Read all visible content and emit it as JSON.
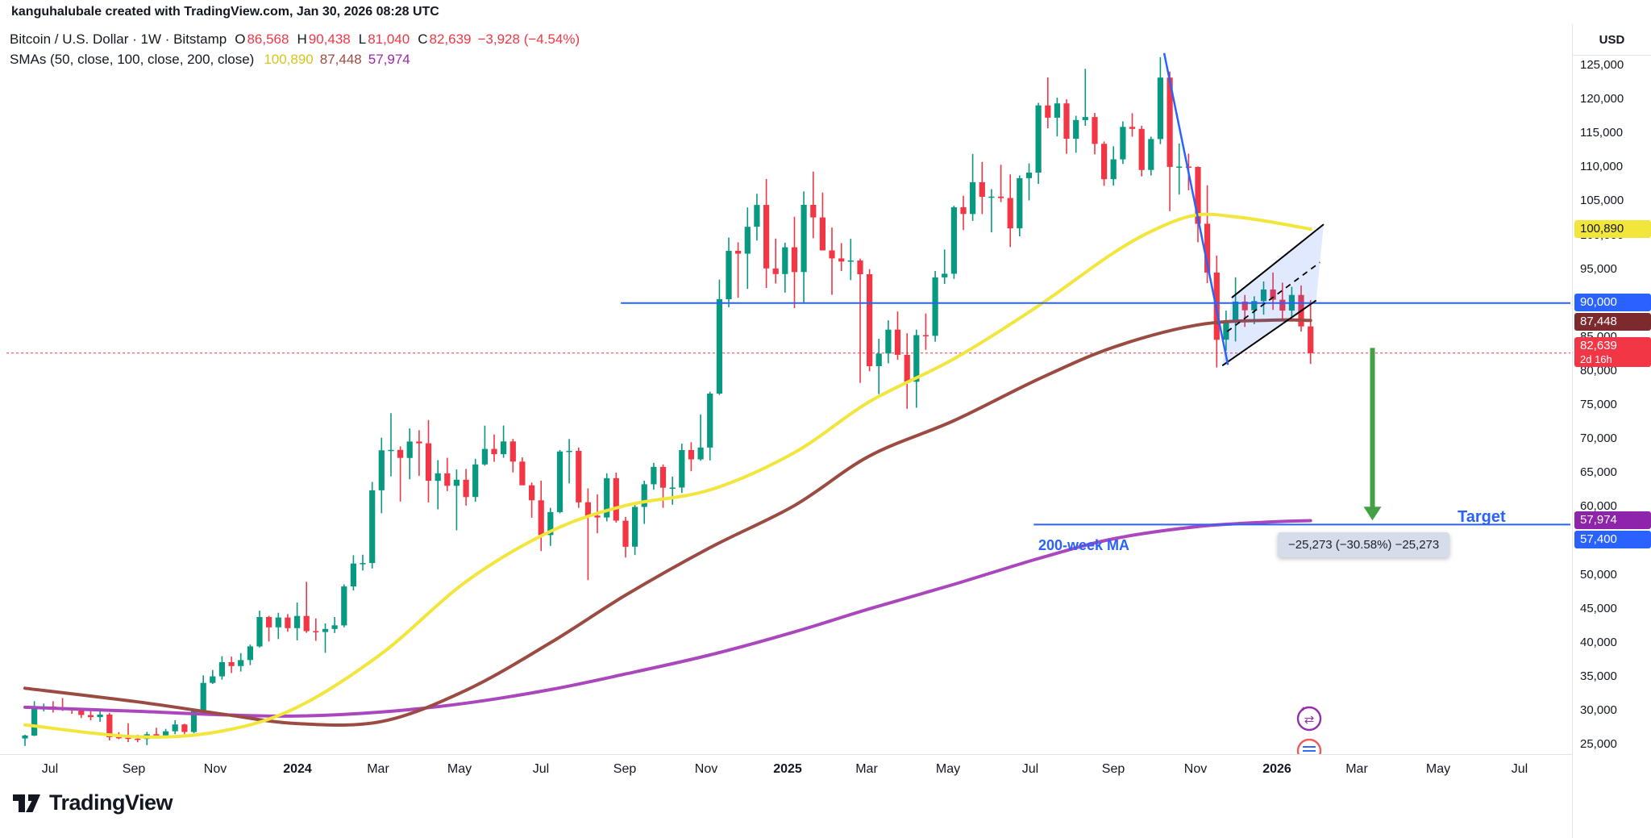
{
  "attribution": {
    "text": "kanguhalubale created with TradingView.com, Jan 30, 2026 08:28 UTC"
  },
  "legend": {
    "symbol_line": {
      "title": "Bitcoin / U.S. Dollar · 1W · Bitstamp",
      "o_label": "O",
      "o": "86,568",
      "h_label": "H",
      "h": "90,438",
      "l_label": "L",
      "l": "81,040",
      "c_label": "C",
      "c": "82,639",
      "change": "−3,928 (−4.54%)"
    },
    "sma_line": {
      "title": "SMAs (50, close, 100, close, 200, close)",
      "sma50": "100,890",
      "sma100": "87,448",
      "sma200": "57,974"
    }
  },
  "price_axis": {
    "currency": "USD",
    "ticks": [
      "125,000",
      "120,000",
      "115,000",
      "110,000",
      "105,000",
      "100,000",
      "95,000",
      "90,000",
      "85,000",
      "80,000",
      "75,000",
      "70,000",
      "65,000",
      "60,000",
      "55,000",
      "50,000",
      "45,000",
      "40,000",
      "35,000",
      "30,000",
      "25,000"
    ],
    "badges": [
      {
        "text": "100,890",
        "price": 100890,
        "bg": "#f2e63c",
        "fg": "#131722"
      },
      {
        "text": "90,000",
        "price": 90000,
        "bg": "#2962ff",
        "fg": "#ffffff"
      },
      {
        "text": "87,448",
        "price": 87448,
        "bg": "#7c2a2e",
        "fg": "#ffffff"
      },
      {
        "text": "82,639",
        "sub": "2d 16h",
        "price": 82639,
        "bg": "#f23645",
        "fg": "#ffffff"
      },
      {
        "text": "57,974",
        "price": 57974,
        "bg": "#8e24aa",
        "fg": "#ffffff"
      },
      {
        "text": "57,400",
        "price": 57400,
        "bg": "#2962ff",
        "fg": "#ffffff"
      }
    ]
  },
  "time_axis": {
    "labels": [
      {
        "text": "Jul",
        "week": 2.7
      },
      {
        "text": "Sep",
        "week": 11.6
      },
      {
        "text": "Nov",
        "week": 20.3
      },
      {
        "text": "2024",
        "week": 29.0,
        "year": true
      },
      {
        "text": "Mar",
        "week": 37.6
      },
      {
        "text": "May",
        "week": 46.3
      },
      {
        "text": "Jul",
        "week": 55.0
      },
      {
        "text": "Sep",
        "week": 63.9
      },
      {
        "text": "Nov",
        "week": 72.6
      },
      {
        "text": "2025",
        "week": 81.3,
        "year": true
      },
      {
        "text": "Mar",
        "week": 89.7
      },
      {
        "text": "May",
        "week": 98.4
      },
      {
        "text": "Jul",
        "week": 107.1
      },
      {
        "text": "Sep",
        "week": 116.0
      },
      {
        "text": "Nov",
        "week": 124.7
      },
      {
        "text": "2026",
        "week": 133.4,
        "year": true
      },
      {
        "text": "Mar",
        "week": 141.9
      },
      {
        "text": "May",
        "week": 150.6
      },
      {
        "text": "Jul",
        "week": 159.3
      }
    ]
  },
  "footer": {
    "brand": "TradingView"
  },
  "watermark_icons": [
    "currency-exchange-icon",
    "economic-calendar-icon"
  ],
  "chart_data": {
    "type": "candlestick",
    "symbol": "Bitcoin / U.S. Dollar",
    "exchange": "Bitstamp",
    "interval": "1W",
    "start_date": "2023-06-12",
    "ylim": [
      23600,
      131300
    ],
    "up_color": "#089981",
    "down_color": "#f23645",
    "ohlc": [
      [
        25900,
        26460,
        24800,
        26340
      ],
      [
        26340,
        31390,
        26260,
        30480
      ],
      [
        30480,
        31040,
        29900,
        30620
      ],
      [
        30620,
        31390,
        29720,
        30290
      ],
      [
        30290,
        31850,
        29960,
        30250
      ],
      [
        30250,
        30460,
        29520,
        30090
      ],
      [
        30090,
        30340,
        28910,
        29350
      ],
      [
        29350,
        30030,
        28580,
        29050
      ],
      [
        29050,
        30210,
        28360,
        29420
      ],
      [
        29420,
        29680,
        25620,
        26100
      ],
      [
        26100,
        26840,
        25800,
        26010
      ],
      [
        26010,
        28140,
        25370,
        25870
      ],
      [
        25870,
        26440,
        25340,
        25830
      ],
      [
        25830,
        26880,
        24930,
        26530
      ],
      [
        26530,
        27480,
        26290,
        26250
      ],
      [
        26250,
        27320,
        25970,
        26960
      ],
      [
        26960,
        28590,
        26530,
        27970
      ],
      [
        27970,
        28080,
        26540,
        26860
      ],
      [
        26860,
        30230,
        26680,
        29990
      ],
      [
        29990,
        35190,
        29800,
        34090
      ],
      [
        34090,
        35980,
        33920,
        35050
      ],
      [
        35050,
        38010,
        34560,
        37140
      ],
      [
        37140,
        37960,
        35550,
        36570
      ],
      [
        36570,
        38450,
        35760,
        37450
      ],
      [
        37450,
        39720,
        36710,
        39460
      ],
      [
        39460,
        44730,
        39300,
        43790
      ],
      [
        43790,
        43960,
        40180,
        42270
      ],
      [
        42270,
        44410,
        40530,
        43720
      ],
      [
        43720,
        44230,
        41620,
        42150
      ],
      [
        42150,
        45920,
        40340,
        43940
      ],
      [
        43940,
        48970,
        41450,
        41710
      ],
      [
        41710,
        43580,
        40280,
        41580
      ],
      [
        41580,
        42840,
        38510,
        42030
      ],
      [
        42030,
        43790,
        41430,
        42560
      ],
      [
        42560,
        48590,
        42270,
        48290
      ],
      [
        48290,
        52880,
        47710,
        51660
      ],
      [
        51660,
        52950,
        50620,
        51730
      ],
      [
        51730,
        63680,
        50930,
        62440
      ],
      [
        62440,
        70180,
        59060,
        68330
      ],
      [
        68330,
        73790,
        64500,
        68390
      ],
      [
        68390,
        68910,
        60790,
        67210
      ],
      [
        67210,
        71550,
        64060,
        69630
      ],
      [
        69630,
        71290,
        64550,
        69360
      ],
      [
        69360,
        72800,
        60660,
        63840
      ],
      [
        63840,
        66880,
        59640,
        64940
      ],
      [
        64940,
        67230,
        62320,
        63110
      ],
      [
        63110,
        65510,
        56550,
        64000
      ],
      [
        64000,
        65590,
        60180,
        61450
      ],
      [
        61450,
        67080,
        60750,
        66250
      ],
      [
        66250,
        71970,
        66060,
        68530
      ],
      [
        68530,
        70670,
        66640,
        67760
      ],
      [
        67760,
        71990,
        67230,
        69640
      ],
      [
        69640,
        70000,
        65070,
        66670
      ],
      [
        66670,
        67290,
        63380,
        63180
      ],
      [
        63180,
        63590,
        58400,
        60970
      ],
      [
        60970,
        63860,
        53500,
        55850
      ],
      [
        55850,
        59850,
        54260,
        59230
      ],
      [
        59230,
        68370,
        59050,
        68150
      ],
      [
        68150,
        69990,
        63460,
        68250
      ],
      [
        68250,
        68750,
        59850,
        60680
      ],
      [
        60680,
        62720,
        49220,
        58710
      ],
      [
        58710,
        61850,
        56120,
        58440
      ],
      [
        58440,
        64950,
        57870,
        64220
      ],
      [
        64220,
        65050,
        57690,
        57970
      ],
      [
        57970,
        58520,
        52550,
        54140
      ],
      [
        54140,
        60620,
        52900,
        59990
      ],
      [
        59990,
        63850,
        57490,
        63330
      ],
      [
        63330,
        66480,
        62540,
        65880
      ],
      [
        65880,
        66250,
        59850,
        62820
      ],
      [
        62820,
        64460,
        60320,
        62850
      ],
      [
        62850,
        69300,
        62050,
        68370
      ],
      [
        68370,
        69520,
        65260,
        67010
      ],
      [
        67010,
        73620,
        66800,
        68740
      ],
      [
        68740,
        76950,
        66830,
        76680
      ],
      [
        76680,
        93440,
        76460,
        90580
      ],
      [
        90580,
        99660,
        89380,
        97700
      ],
      [
        97700,
        98960,
        90790,
        97280
      ],
      [
        97280,
        104080,
        92090,
        101240
      ],
      [
        101240,
        106090,
        99220,
        104450
      ],
      [
        104450,
        108270,
        92230,
        95100
      ],
      [
        95100,
        99500,
        92890,
        94280
      ],
      [
        94280,
        98890,
        91530,
        98220
      ],
      [
        98220,
        102720,
        89260,
        94570
      ],
      [
        94570,
        106460,
        89930,
        104460
      ],
      [
        104460,
        109360,
        99550,
        102610
      ],
      [
        102610,
        106280,
        97780,
        97750
      ],
      [
        97750,
        101130,
        91230,
        96580
      ],
      [
        96580,
        98840,
        94720,
        96120
      ],
      [
        96120,
        99470,
        93390,
        96270
      ],
      [
        96270,
        96550,
        78260,
        94250
      ],
      [
        94250,
        95000,
        79960,
        80710
      ],
      [
        80710,
        84750,
        76610,
        82580
      ],
      [
        82580,
        87470,
        81130,
        86090
      ],
      [
        86090,
        88770,
        81640,
        82380
      ],
      [
        82380,
        85560,
        74430,
        78430
      ],
      [
        78430,
        86100,
        74600,
        85290
      ],
      [
        85290,
        88470,
        83110,
        85180
      ],
      [
        85180,
        94720,
        84320,
        93780
      ],
      [
        93780,
        97900,
        92830,
        94320
      ],
      [
        94320,
        104330,
        93570,
        104110
      ],
      [
        104110,
        105820,
        100750,
        103120
      ],
      [
        103120,
        111970,
        102110,
        107800
      ],
      [
        107800,
        110780,
        103110,
        105650
      ],
      [
        105650,
        106780,
        100420,
        105690
      ],
      [
        105690,
        110370,
        104870,
        105470
      ],
      [
        105470,
        108950,
        98250,
        101010
      ],
      [
        101010,
        108800,
        99830,
        108390
      ],
      [
        108390,
        110570,
        105120,
        109210
      ],
      [
        109210,
        119480,
        107550,
        119100
      ],
      [
        119100,
        123220,
        115750,
        117300
      ],
      [
        117300,
        120250,
        114550,
        119400
      ],
      [
        119400,
        120000,
        111980,
        114200
      ],
      [
        114200,
        117580,
        112130,
        116950
      ],
      [
        116950,
        124500,
        116100,
        117400
      ],
      [
        117400,
        118000,
        111900,
        113450
      ],
      [
        113450,
        113800,
        107270,
        108240
      ],
      [
        108240,
        113080,
        107300,
        111170
      ],
      [
        111170,
        116750,
        110500,
        115950
      ],
      [
        115950,
        117950,
        114500,
        115650
      ],
      [
        115650,
        116100,
        108650,
        109600
      ],
      [
        109600,
        114500,
        108800,
        114150
      ],
      [
        114150,
        126200,
        113400,
        123200
      ],
      [
        123200,
        124100,
        103530,
        110060
      ],
      [
        110060,
        113500,
        106000,
        110100
      ],
      [
        110100,
        112000,
        106600,
        110050
      ],
      [
        110050,
        110100,
        98950,
        101680
      ],
      [
        101680,
        107350,
        92930,
        94500
      ],
      [
        94500,
        97000,
        80520,
        84600
      ],
      [
        84600,
        88900,
        82980,
        87300
      ],
      [
        87300,
        93800,
        84350,
        90230
      ],
      [
        90230,
        91200,
        86500,
        88950
      ],
      [
        88950,
        91000,
        86900,
        90300
      ],
      [
        90300,
        93200,
        88300,
        92010
      ],
      [
        92010,
        94500,
        89000,
        90500
      ],
      [
        90500,
        93000,
        87500,
        88900
      ],
      [
        88900,
        92400,
        87900,
        91200
      ],
      [
        91200,
        92600,
        85800,
        86568
      ],
      [
        86568,
        90438,
        81040,
        82639
      ]
    ],
    "overlays": {
      "sma50": {
        "label": "SMA 50 (close)",
        "last_value": 100890,
        "color": "#f2e63c",
        "points": [
          [
            0,
            27900
          ],
          [
            12,
            26150
          ],
          [
            21,
            27000
          ],
          [
            29,
            30500
          ],
          [
            38,
            38400
          ],
          [
            47,
            49000
          ],
          [
            56,
            56400
          ],
          [
            64,
            60200
          ],
          [
            73,
            62500
          ],
          [
            82,
            68000
          ],
          [
            90,
            75500
          ],
          [
            99,
            81800
          ],
          [
            108,
            89600
          ],
          [
            116,
            97400
          ],
          [
            121,
            101200
          ],
          [
            125,
            103000
          ],
          [
            129,
            102700
          ],
          [
            133,
            101900
          ],
          [
            137,
            100890
          ]
        ]
      },
      "sma100": {
        "label": "SMA 100 (close)",
        "last_value": 87448,
        "color": "#9b4b42",
        "points": [
          [
            0,
            33300
          ],
          [
            12,
            31300
          ],
          [
            21,
            29500
          ],
          [
            29,
            28100
          ],
          [
            38,
            28400
          ],
          [
            47,
            33000
          ],
          [
            56,
            40000
          ],
          [
            64,
            47000
          ],
          [
            73,
            54000
          ],
          [
            82,
            60200
          ],
          [
            90,
            67500
          ],
          [
            99,
            72700
          ],
          [
            108,
            78800
          ],
          [
            116,
            83500
          ],
          [
            125,
            86800
          ],
          [
            133,
            87500
          ],
          [
            137,
            87448
          ]
        ]
      },
      "sma200": {
        "label": "SMA 200 (close)",
        "last_value": 57974,
        "color": "#ab47bc",
        "points": [
          [
            0,
            30500
          ],
          [
            12,
            29900
          ],
          [
            21,
            29400
          ],
          [
            29,
            29200
          ],
          [
            38,
            29800
          ],
          [
            47,
            31100
          ],
          [
            56,
            33100
          ],
          [
            64,
            35400
          ],
          [
            73,
            38200
          ],
          [
            82,
            41600
          ],
          [
            90,
            45000
          ],
          [
            99,
            48600
          ],
          [
            108,
            52400
          ],
          [
            116,
            55300
          ],
          [
            125,
            57100
          ],
          [
            133,
            57800
          ],
          [
            137,
            57974
          ]
        ]
      }
    },
    "drawings": {
      "horizontal_lines": [
        {
          "name": "resistance-line-90000",
          "price": 90000,
          "from_week": 63.5,
          "color": "#2962ff"
        },
        {
          "name": "target-line-57400",
          "price": 57400,
          "from_week": 107.5,
          "color": "#2962ff"
        }
      ],
      "current_price_line": {
        "price": 82639,
        "color": "#f23645"
      },
      "trendline": {
        "points": [
          [
            121.4,
            126800
          ],
          [
            128.2,
            80900
          ]
        ],
        "color": "#2962ff"
      },
      "channel": {
        "lower": [
          [
            127.6,
            80800
          ],
          [
            137.6,
            90400
          ]
        ],
        "upper": [
          [
            128.6,
            90800
          ],
          [
            138.4,
            101600
          ]
        ],
        "line_color": "#000000",
        "fill": "rgba(41,98,255,0.14)"
      },
      "arrow": {
        "week": 143.6,
        "from_price": 83400,
        "to_price": 58000,
        "color": "#43a047"
      },
      "measure_label": {
        "text": "−25,273 (−30.58%) −25,273"
      },
      "target_label": {
        "text": "Target",
        "color": "#2962ff"
      },
      "ma_label": {
        "text": "200-week MA",
        "color": "#2962ff"
      }
    }
  }
}
